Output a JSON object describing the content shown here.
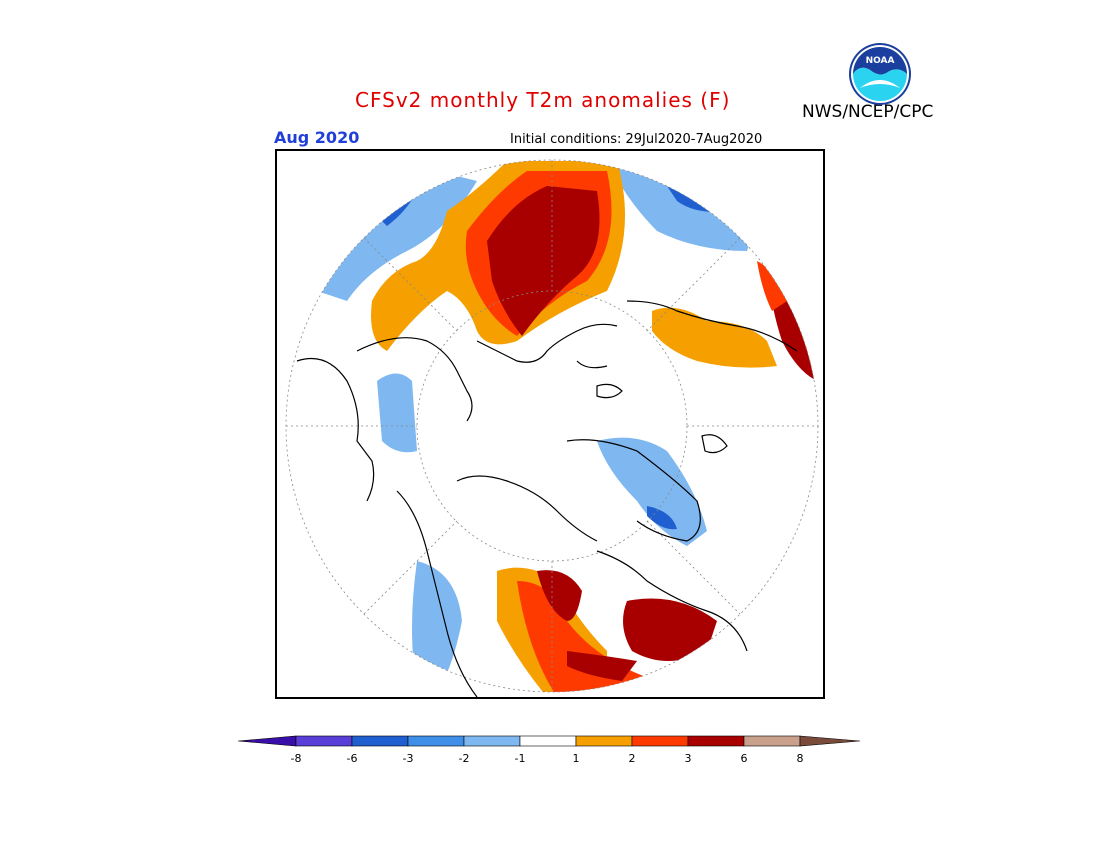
{
  "header": {
    "title": "CFSv2 monthly T2m anomalies (F)",
    "org": "NWS/NCEP/CPC",
    "month": "Aug 2020",
    "initial_conditions": "Initial conditions: 29Jul2020-7Aug2020"
  },
  "logo": {
    "icon": "noaa-logo",
    "text": "NOAA"
  },
  "legend": {
    "levels": [
      "-8",
      "-6",
      "-3",
      "-2",
      "-1",
      "1",
      "2",
      "3",
      "6",
      "8"
    ],
    "colors": [
      "#3a0ea8",
      "#5a3ed8",
      "#1f5fd0",
      "#3f8fe8",
      "#7fb8f0",
      "#ffffff",
      "#f5a000",
      "#ff3a00",
      "#a80000",
      "#c8a08c",
      "#7a4a3a"
    ]
  },
  "map": {
    "projection": "north-polar-stereographic",
    "anomaly_colors": {
      "cold_strong": "#1f5fd0",
      "cold": "#3f8fe8",
      "cool": "#7fb8f0",
      "warm": "#f5a000",
      "warmer": "#ff3a00",
      "hot": "#a80000"
    }
  }
}
